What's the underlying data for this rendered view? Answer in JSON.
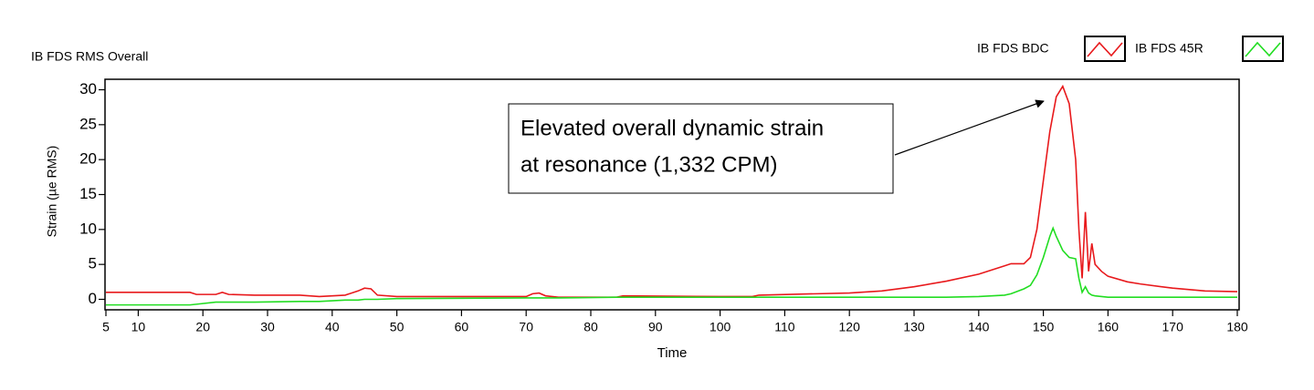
{
  "chart_data": {
    "type": "line",
    "title": "IB FDS RMS Overall",
    "x_label": "Time",
    "y_label": "Strain (µe RMS)",
    "x": [
      5,
      18,
      19,
      22,
      23,
      24,
      28,
      35,
      38,
      42,
      44,
      45,
      46,
      47,
      50,
      70,
      71,
      72,
      73,
      75,
      84,
      85,
      100,
      105,
      106,
      115,
      120,
      125,
      130,
      135,
      140,
      144,
      145,
      147,
      148,
      149,
      150,
      151,
      151.5,
      152,
      153,
      154,
      155,
      155.5,
      156,
      156.5,
      157,
      157.5,
      158,
      159,
      160,
      163,
      165,
      170,
      175,
      180
    ],
    "series": [
      {
        "name": "IB FDS BDC",
        "color": "#e8191c",
        "values": [
          1.0,
          1.0,
          0.7,
          0.7,
          1.0,
          0.7,
          0.6,
          0.6,
          0.4,
          0.6,
          1.2,
          1.6,
          1.5,
          0.6,
          0.4,
          0.4,
          0.8,
          0.9,
          0.5,
          0.3,
          0.3,
          0.5,
          0.4,
          0.4,
          0.6,
          0.8,
          0.9,
          1.2,
          1.8,
          2.6,
          3.6,
          4.8,
          5.1,
          5.1,
          6.0,
          10,
          17,
          24,
          26.5,
          29,
          30.5,
          28,
          20,
          10,
          3,
          12.5,
          4,
          8,
          5,
          4,
          3.3,
          2.5,
          2.2,
          1.6,
          1.2,
          1.1
        ]
      },
      {
        "name": "IB FDS 45R",
        "color": "#22dd22",
        "values": [
          -0.8,
          -0.8,
          -0.7,
          -0.4,
          -0.4,
          -0.4,
          -0.4,
          -0.3,
          -0.3,
          -0.1,
          -0.1,
          0,
          0,
          0,
          0.1,
          0.2,
          0.2,
          0.2,
          0.2,
          0.2,
          0.3,
          0.3,
          0.3,
          0.3,
          0.3,
          0.3,
          0.3,
          0.3,
          0.3,
          0.3,
          0.4,
          0.6,
          0.8,
          1.5,
          2.0,
          3.5,
          6,
          9,
          10.2,
          9,
          7,
          6,
          5.8,
          3,
          1,
          1.8,
          0.9,
          0.6,
          0.5,
          0.4,
          0.3,
          0.3,
          0.3,
          0.3,
          0.3,
          0.3
        ]
      }
    ],
    "xlim": [
      5,
      180
    ],
    "xticks": [
      5,
      10,
      20,
      30,
      40,
      50,
      60,
      70,
      80,
      90,
      100,
      110,
      120,
      130,
      140,
      150,
      160,
      170,
      180
    ],
    "ylim": [
      -1.5,
      31.5
    ],
    "yticks": [
      0,
      5,
      10,
      15,
      20,
      25,
      30
    ],
    "annotation": {
      "lines": [
        "Elevated overall dynamic strain",
        "at resonance (1,332 CPM)"
      ]
    }
  }
}
